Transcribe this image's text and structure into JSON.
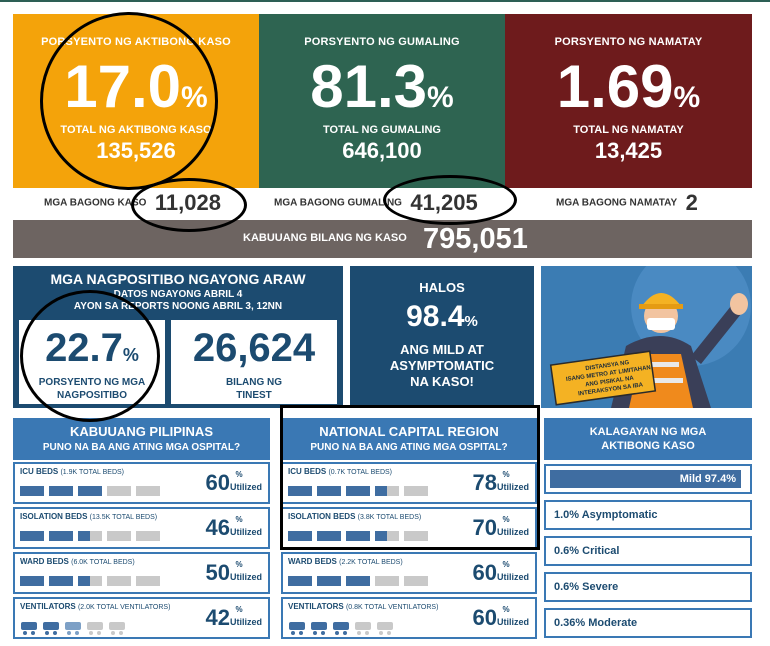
{
  "active": {
    "label": "PORSYENTO NG AKTIBONG KASO",
    "value": "17.0",
    "unit": "%",
    "total_label": "TOTAL NG AKTIBONG KASO",
    "total": "135,526",
    "new_label": "MGA BAGONG KASO",
    "new_value": "11,028"
  },
  "recovered": {
    "label": "PORSYENTO NG GUMALING",
    "value": "81.3",
    "unit": "%",
    "total_label": "TOTAL NG GUMALING",
    "total": "646,100",
    "new_label": "MGA BAGONG GUMALING",
    "new_value": "41,205"
  },
  "deaths": {
    "label": "PORSYENTO NG NAMATAY",
    "value": "1.69",
    "unit": "%",
    "total_label": "TOTAL NG NAMATAY",
    "total": "13,425",
    "new_label": "MGA BAGONG NAMATAY",
    "new_value": "2"
  },
  "total_cases": {
    "label": "KABUUANG BILANG NG KASO",
    "value": "795,051"
  },
  "positivity": {
    "title": "MGA NAGPOSITIBO NGAYONG ARAW",
    "date_line1": "DATOS NGAYONG ABRIL 4",
    "date_line2": "AYON SA REPORTS NOONG ABRIL 3, 12NN",
    "rate_value": "22.7",
    "rate_unit": "%",
    "rate_label1": "PORSYENTO NG MGA",
    "rate_label2": "NAGPOSITIBO",
    "tested_value": "26,624",
    "tested_label1": "BILANG NG",
    "tested_label2": "TINEST"
  },
  "mild": {
    "l1": "HALOS",
    "value": "98.4",
    "unit": "%",
    "l2": "ANG MILD AT",
    "l3": "ASYMPTOMATIC",
    "l4": "NA KASO!"
  },
  "poster": {
    "text1": "DISTANSYA NG",
    "text2": "ISANG METRO AT LIMITAHAN",
    "text3": "ANG PISIKAL NA",
    "text4": "INTERAKSYON SA IBA"
  },
  "ph": {
    "title": "KABUUANG PILIPINAS",
    "subtitle": "PUNO NA BA ANG ATING MGA OSPITAL?",
    "rows": [
      {
        "name": "ICU BEDS",
        "cap": "(1.9K TOTAL BEDS)",
        "value": "60",
        "pct": "%",
        "util": "Utilized"
      },
      {
        "name": "ISOLATION BEDS",
        "cap": "(13.5K TOTAL BEDS)",
        "value": "46",
        "pct": "%",
        "util": "Utilized"
      },
      {
        "name": "WARD BEDS",
        "cap": "(6.0K TOTAL BEDS)",
        "value": "50",
        "pct": "%",
        "util": "Utilized"
      },
      {
        "name": "VENTILATORS",
        "cap": "(2.0K TOTAL VENTILATORS)",
        "value": "42",
        "pct": "%",
        "util": "Utilized"
      }
    ]
  },
  "ncr": {
    "title": "NATIONAL CAPITAL REGION",
    "subtitle": "PUNO NA BA ANG ATING MGA OSPITAL?",
    "rows": [
      {
        "name": "ICU BEDS",
        "cap": "(0.7K TOTAL BEDS)",
        "value": "78",
        "pct": "%",
        "util": "Utilized"
      },
      {
        "name": "ISOLATION BEDS",
        "cap": "(3.8K TOTAL BEDS)",
        "value": "70",
        "pct": "%",
        "util": "Utilized"
      },
      {
        "name": "WARD BEDS",
        "cap": "(2.2K TOTAL BEDS)",
        "value": "60",
        "pct": "%",
        "util": "Utilized"
      },
      {
        "name": "VENTILATORS",
        "cap": "(0.8K TOTAL VENTILATORS)",
        "value": "60",
        "pct": "%",
        "util": "Utilized"
      }
    ]
  },
  "status": {
    "title1": "KALAGAYAN NG MGA",
    "title2": "AKTIBONG KASO",
    "mild": "Mild 97.4%",
    "asymptomatic": "1.0% Asymptomatic",
    "critical": "0.6% Critical",
    "severe": "0.6% Severe",
    "moderate": "0.36% Moderate",
    "mild_fraction": 0.974
  },
  "colors": {
    "orange": "#f4a30a",
    "green": "#2e6451",
    "red": "#6e1b1c",
    "navy": "#1c4b70",
    "blue": "#3a78b4",
    "gray": "#6d6461"
  }
}
